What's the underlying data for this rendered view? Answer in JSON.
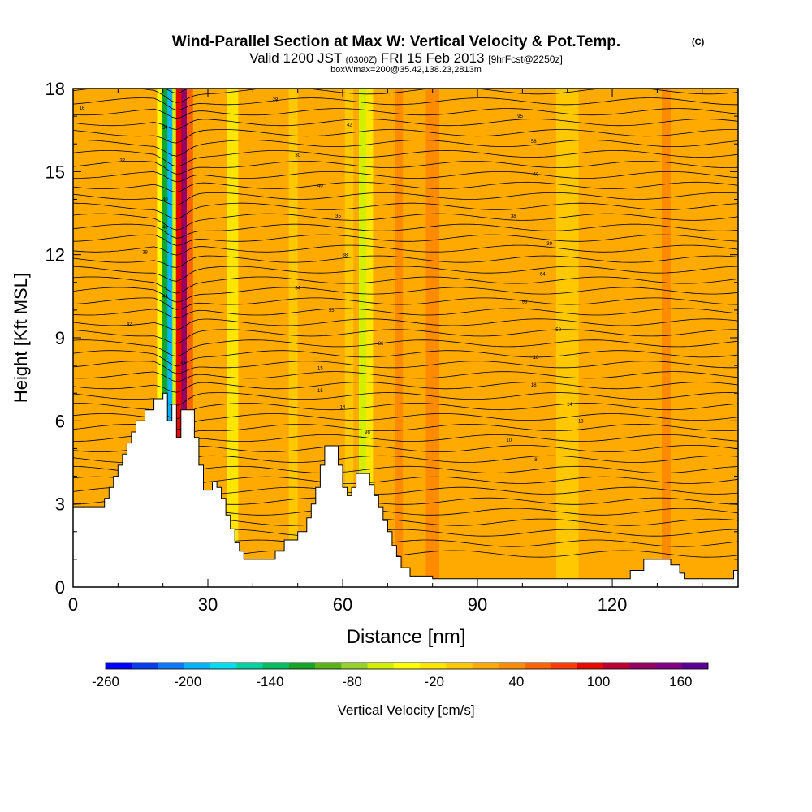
{
  "chart_data": {
    "type": "heatmap",
    "title": "Wind-Parallel Section at Max W: Vertical Velocity & Pot.Temp.",
    "title_mark": "(C)",
    "subtitle_valid": "Valid 1200 JST",
    "subtitle_utc": "(0300Z)",
    "subtitle_date": "FRI 15 Feb 2013",
    "subtitle_fcst": "[9hrFcst@2250z]",
    "subtitle_box": "boxWmax=200@35.42,138.23,2813m",
    "xlabel": "Distance [nm]",
    "ylabel": "Height [Kft MSL]",
    "xlim": [
      0,
      148
    ],
    "ylim": [
      0,
      18
    ],
    "xticks": [
      0,
      30,
      60,
      90,
      120
    ],
    "yticks": [
      0,
      3,
      6,
      9,
      12,
      15,
      18
    ],
    "colorbar": {
      "label": "Vertical Velocity [cm/s]",
      "tick_labels": [
        "-260",
        "-200",
        "-140",
        "-80",
        "-20",
        "40",
        "100",
        "160"
      ],
      "colors": [
        "#0000ff",
        "#0a3cf0",
        "#0a78ff",
        "#00b4ff",
        "#00dcf0",
        "#00d2a0",
        "#00be64",
        "#14a628",
        "#5ab414",
        "#96d228",
        "#d2f000",
        "#ffff00",
        "#ffe600",
        "#ffc800",
        "#ffaa00",
        "#ff8c00",
        "#ff6400",
        "#ff3c00",
        "#e60a00",
        "#be0032",
        "#960064",
        "#820082",
        "#5a0096"
      ],
      "min": -260,
      "max": 180
    },
    "background_velocity_cm_s": 10,
    "velocity_bands": [
      {
        "x_center": 19.5,
        "width": 1.6,
        "w": -40
      },
      {
        "x_center": 20.5,
        "width": 1.4,
        "w": -110
      },
      {
        "x_center": 21.6,
        "width": 1.2,
        "w": -200
      },
      {
        "x_center": 22.6,
        "width": 1.0,
        "w": -60
      },
      {
        "x_center": 23.6,
        "width": 1.4,
        "w": 90
      },
      {
        "x_center": 24.8,
        "width": 1.4,
        "w": 140
      },
      {
        "x_center": 26.0,
        "width": 1.4,
        "w": 60
      },
      {
        "x_center": 28.0,
        "width": 2.0,
        "w": 20
      },
      {
        "x_center": 35.5,
        "width": 2.5,
        "w": -30
      },
      {
        "x_center": 49.0,
        "width": 2.0,
        "w": -10
      },
      {
        "x_center": 61.5,
        "width": 2.0,
        "w": -10
      },
      {
        "x_center": 63.0,
        "width": 1.2,
        "w": 20
      },
      {
        "x_center": 64.5,
        "width": 1.8,
        "w": -50
      },
      {
        "x_center": 66.0,
        "width": 1.5,
        "w": -20
      },
      {
        "x_center": 72.5,
        "width": 1.8,
        "w": 40
      },
      {
        "x_center": 80.0,
        "width": 3.0,
        "w": 30
      },
      {
        "x_center": 86.0,
        "width": 2.0,
        "w": 20
      },
      {
        "x_center": 110.0,
        "width": 5.0,
        "w": -5
      },
      {
        "x_center": 132.0,
        "width": 2.0,
        "w": 30
      }
    ],
    "terrain_profile_kft": [
      [
        0,
        2.9
      ],
      [
        7,
        2.9
      ],
      [
        7,
        3.2
      ],
      [
        8,
        3.2
      ],
      [
        8,
        3.6
      ],
      [
        9,
        3.6
      ],
      [
        9,
        4.0
      ],
      [
        10,
        4.0
      ],
      [
        10,
        4.4
      ],
      [
        11,
        4.4
      ],
      [
        11,
        4.8
      ],
      [
        12,
        4.8
      ],
      [
        12,
        5.2
      ],
      [
        13,
        5.2
      ],
      [
        13,
        5.6
      ],
      [
        14,
        5.6
      ],
      [
        14,
        6.0
      ],
      [
        16,
        6.0
      ],
      [
        16,
        6.4
      ],
      [
        18,
        6.4
      ],
      [
        18,
        6.8
      ],
      [
        20,
        6.8
      ],
      [
        20,
        7.0
      ],
      [
        21,
        7.0
      ],
      [
        21,
        6.0
      ],
      [
        22,
        6.0
      ],
      [
        22,
        6.6
      ],
      [
        23,
        6.6
      ],
      [
        23,
        5.4
      ],
      [
        24,
        5.4
      ],
      [
        24,
        6.4
      ],
      [
        27,
        6.4
      ],
      [
        27,
        5.4
      ],
      [
        28,
        5.4
      ],
      [
        28,
        4.4
      ],
      [
        29,
        4.4
      ],
      [
        29,
        3.5
      ],
      [
        31,
        3.5
      ],
      [
        31,
        3.8
      ],
      [
        32,
        3.8
      ],
      [
        32,
        3.6
      ],
      [
        33,
        3.6
      ],
      [
        33,
        3.2
      ],
      [
        34,
        3.2
      ],
      [
        34,
        2.6
      ],
      [
        35,
        2.6
      ],
      [
        35,
        2.1
      ],
      [
        36,
        2.1
      ],
      [
        36,
        1.6
      ],
      [
        37,
        1.6
      ],
      [
        37,
        1.3
      ],
      [
        38,
        1.3
      ],
      [
        38,
        1.0
      ],
      [
        45,
        1.0
      ],
      [
        45,
        1.3
      ],
      [
        47,
        1.3
      ],
      [
        47,
        1.7
      ],
      [
        50,
        1.7
      ],
      [
        50,
        2.0
      ],
      [
        52,
        2.0
      ],
      [
        52,
        2.5
      ],
      [
        53,
        2.5
      ],
      [
        53,
        3.0
      ],
      [
        54,
        3.0
      ],
      [
        54,
        3.6
      ],
      [
        55,
        3.6
      ],
      [
        55,
        4.4
      ],
      [
        56,
        4.4
      ],
      [
        56,
        5.1
      ],
      [
        59,
        5.1
      ],
      [
        59,
        4.4
      ],
      [
        60,
        4.4
      ],
      [
        60,
        3.6
      ],
      [
        61,
        3.6
      ],
      [
        61,
        3.3
      ],
      [
        62,
        3.3
      ],
      [
        62,
        3.6
      ],
      [
        63,
        3.6
      ],
      [
        63,
        4.1
      ],
      [
        66,
        4.1
      ],
      [
        66,
        3.7
      ],
      [
        67,
        3.7
      ],
      [
        67,
        3.3
      ],
      [
        68,
        3.3
      ],
      [
        68,
        2.9
      ],
      [
        69,
        2.9
      ],
      [
        69,
        2.4
      ],
      [
        70,
        2.4
      ],
      [
        70,
        2.0
      ],
      [
        71,
        2.0
      ],
      [
        71,
        1.5
      ],
      [
        72,
        1.5
      ],
      [
        72,
        1.1
      ],
      [
        73,
        1.1
      ],
      [
        73,
        0.7
      ],
      [
        75,
        0.7
      ],
      [
        75,
        0.4
      ],
      [
        80,
        0.4
      ],
      [
        80,
        0.3
      ],
      [
        124,
        0.3
      ],
      [
        124,
        0.6
      ],
      [
        127,
        0.6
      ],
      [
        127,
        1.0
      ],
      [
        133,
        1.0
      ],
      [
        133,
        0.8
      ],
      [
        135,
        0.8
      ],
      [
        135,
        0.5
      ],
      [
        136,
        0.5
      ],
      [
        136,
        0.3
      ],
      [
        147,
        0.3
      ],
      [
        147,
        0.6
      ],
      [
        148,
        0.6
      ],
      [
        148,
        0
      ]
    ],
    "isentrope_labels": [
      {
        "x": 2,
        "y": 17.3,
        "text": "16"
      },
      {
        "x": 11,
        "y": 15.4,
        "text": "32"
      },
      {
        "x": 20.5,
        "y": 16.6,
        "text": "34"
      },
      {
        "x": 20.5,
        "y": 14.0,
        "text": "40"
      },
      {
        "x": 20.5,
        "y": 13.0,
        "text": "40"
      },
      {
        "x": 16,
        "y": 12.1,
        "text": "38"
      },
      {
        "x": 12.5,
        "y": 9.5,
        "text": "42"
      },
      {
        "x": 20.5,
        "y": 10.5,
        "text": "44"
      },
      {
        "x": 24.5,
        "y": 8.1,
        "text": "47"
      },
      {
        "x": 45,
        "y": 17.6,
        "text": "28"
      },
      {
        "x": 50,
        "y": 15.6,
        "text": "30"
      },
      {
        "x": 55,
        "y": 14.5,
        "text": "40"
      },
      {
        "x": 61.5,
        "y": 16.7,
        "text": "42"
      },
      {
        "x": 59,
        "y": 13.4,
        "text": "35"
      },
      {
        "x": 60.5,
        "y": 12.0,
        "text": "38"
      },
      {
        "x": 50,
        "y": 10.8,
        "text": "34"
      },
      {
        "x": 57.5,
        "y": 10.0,
        "text": "55"
      },
      {
        "x": 68.5,
        "y": 8.8,
        "text": "86"
      },
      {
        "x": 55,
        "y": 7.9,
        "text": "15"
      },
      {
        "x": 55,
        "y": 7.1,
        "text": "15"
      },
      {
        "x": 60,
        "y": 6.5,
        "text": "14"
      },
      {
        "x": 65.5,
        "y": 5.6,
        "text": "98"
      },
      {
        "x": 99.5,
        "y": 17.0,
        "text": "95"
      },
      {
        "x": 102.5,
        "y": 16.1,
        "text": "58"
      },
      {
        "x": 103,
        "y": 14.9,
        "text": "40"
      },
      {
        "x": 98,
        "y": 13.4,
        "text": "38"
      },
      {
        "x": 106,
        "y": 12.4,
        "text": "39"
      },
      {
        "x": 104.5,
        "y": 11.3,
        "text": "64"
      },
      {
        "x": 100.5,
        "y": 10.3,
        "text": "98"
      },
      {
        "x": 108,
        "y": 9.3,
        "text": "58"
      },
      {
        "x": 103,
        "y": 8.3,
        "text": "18"
      },
      {
        "x": 102.5,
        "y": 7.3,
        "text": "18"
      },
      {
        "x": 110.5,
        "y": 6.6,
        "text": "14"
      },
      {
        "x": 113,
        "y": 6.0,
        "text": "13"
      },
      {
        "x": 97,
        "y": 5.3,
        "text": "10"
      },
      {
        "x": 103,
        "y": 4.6,
        "text": "8"
      }
    ]
  }
}
